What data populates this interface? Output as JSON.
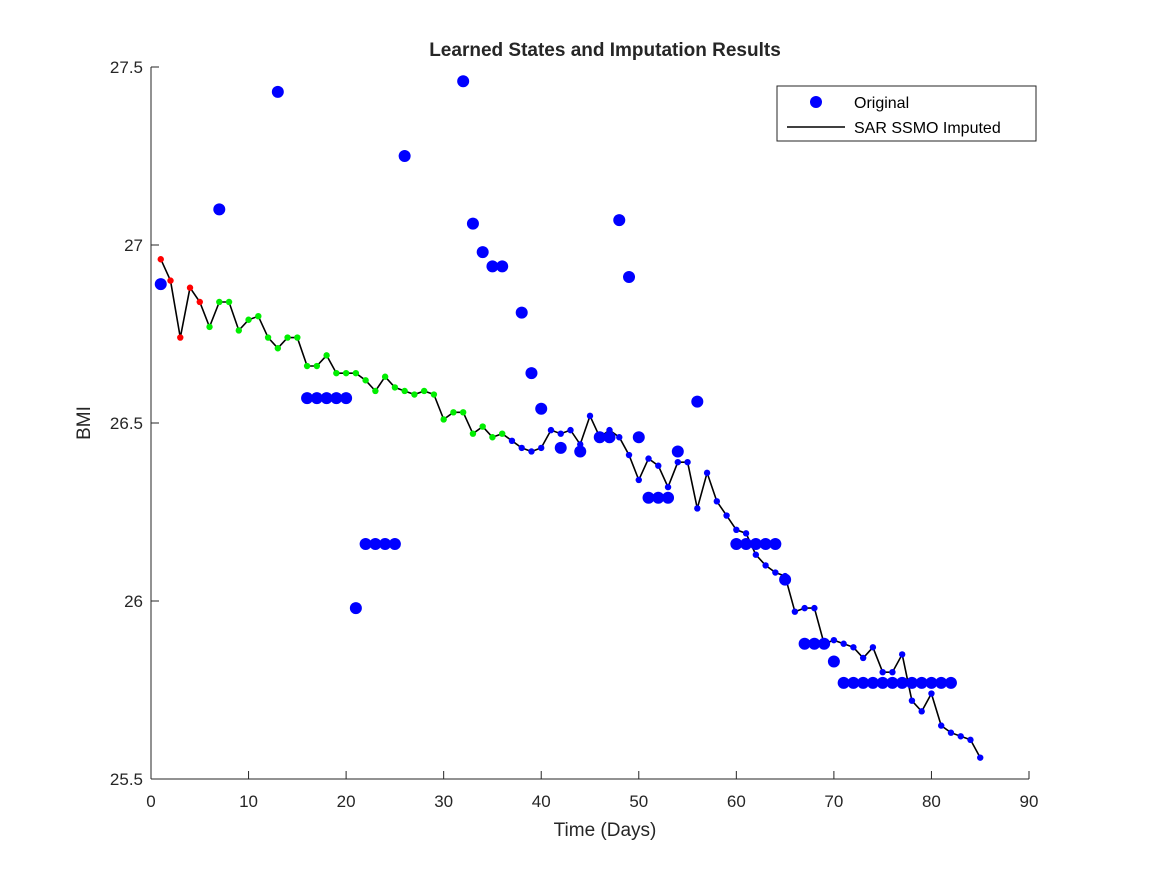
{
  "chart_data": {
    "type": "scatter",
    "title": "Learned States and Imputation Results",
    "xlabel": "Time (Days)",
    "ylabel": "BMI",
    "xlim": [
      0,
      90
    ],
    "ylim": [
      25.5,
      27.5
    ],
    "xticks": [
      "0",
      "10",
      "20",
      "30",
      "40",
      "50",
      "60",
      "70",
      "80",
      "90"
    ],
    "yticks": [
      "25.5",
      "26",
      "26.5",
      "27",
      "27.5"
    ],
    "grid": false,
    "legend_position": "top-right",
    "legend": [
      "Original",
      "SAR SSMO Imputed"
    ],
    "colors": {
      "original": "#0000ff",
      "imputed_line": "#000000",
      "state_1": "#ff0000",
      "state_2": "#00ee00",
      "state_3": "#0000ff"
    },
    "series": [
      {
        "name": "Original",
        "marker": "large-dot",
        "x": [
          1,
          7,
          13,
          16,
          17,
          18,
          19,
          20,
          21,
          22,
          23,
          24,
          25,
          26,
          32,
          33,
          34,
          35,
          36,
          38,
          39,
          40,
          42,
          44,
          46,
          47,
          48,
          49,
          50,
          51,
          52,
          53,
          54,
          56,
          60,
          61,
          62,
          63,
          64,
          65,
          67,
          68,
          69,
          70,
          71,
          72,
          73,
          74,
          75,
          76,
          77,
          78,
          79,
          80,
          81,
          82
        ],
        "y": [
          26.89,
          27.1,
          27.43,
          26.57,
          26.57,
          26.57,
          26.57,
          26.57,
          25.98,
          26.16,
          26.16,
          26.16,
          26.16,
          27.25,
          27.46,
          27.06,
          26.98,
          26.94,
          26.94,
          26.81,
          26.64,
          26.54,
          26.43,
          26.42,
          26.46,
          26.46,
          27.07,
          26.91,
          26.46,
          26.29,
          26.29,
          26.29,
          26.42,
          26.56,
          26.16,
          26.16,
          26.16,
          26.16,
          26.16,
          26.06,
          25.88,
          25.88,
          25.88,
          25.83,
          25.77,
          25.77,
          25.77,
          25.77,
          25.77,
          25.77,
          25.77,
          25.77,
          25.77,
          25.77,
          25.77,
          25.77
        ]
      },
      {
        "name": "SAR SSMO Imputed",
        "marker": "small-dot-line",
        "x": [
          1,
          2,
          3,
          4,
          5,
          6,
          7,
          8,
          9,
          10,
          11,
          12,
          13,
          14,
          15,
          16,
          17,
          18,
          19,
          20,
          21,
          22,
          23,
          24,
          25,
          26,
          27,
          28,
          29,
          30,
          31,
          32,
          33,
          34,
          35,
          36,
          37,
          38,
          39,
          40,
          41,
          42,
          43,
          44,
          45,
          46,
          47,
          48,
          49,
          50,
          51,
          52,
          53,
          54,
          55,
          56,
          57,
          58,
          59,
          60,
          61,
          62,
          63,
          64,
          65,
          66,
          67,
          68,
          69,
          70,
          71,
          72,
          73,
          74,
          75,
          76,
          77,
          78,
          79,
          80,
          81,
          82,
          83,
          84,
          85
        ],
        "y": [
          26.96,
          26.9,
          26.74,
          26.88,
          26.84,
          26.77,
          26.84,
          26.84,
          26.76,
          26.79,
          26.8,
          26.74,
          26.71,
          26.74,
          26.74,
          26.66,
          26.66,
          26.69,
          26.64,
          26.64,
          26.64,
          26.62,
          26.59,
          26.63,
          26.6,
          26.59,
          26.58,
          26.59,
          26.58,
          26.51,
          26.53,
          26.53,
          26.47,
          26.49,
          26.46,
          26.47,
          26.45,
          26.43,
          26.42,
          26.43,
          26.48,
          26.47,
          26.48,
          26.44,
          26.52,
          26.46,
          26.48,
          26.46,
          26.41,
          26.34,
          26.4,
          26.38,
          26.32,
          26.39,
          26.39,
          26.26,
          26.36,
          26.28,
          26.24,
          26.2,
          26.19,
          26.13,
          26.1,
          26.08,
          26.07,
          25.97,
          25.98,
          25.98,
          25.88,
          25.89,
          25.88,
          25.87,
          25.84,
          25.87,
          25.8,
          25.8,
          25.85,
          25.72,
          25.69,
          25.74,
          25.65,
          25.63,
          25.62,
          25.61,
          25.56
        ],
        "state": [
          1,
          1,
          1,
          1,
          1,
          2,
          2,
          2,
          2,
          2,
          2,
          2,
          2,
          2,
          2,
          2,
          2,
          2,
          2,
          2,
          2,
          2,
          2,
          2,
          2,
          2,
          2,
          2,
          2,
          2,
          2,
          2,
          2,
          2,
          2,
          2,
          3,
          3,
          3,
          3,
          3,
          3,
          3,
          3,
          3,
          3,
          3,
          3,
          3,
          3,
          3,
          3,
          3,
          3,
          3,
          3,
          3,
          3,
          3,
          3,
          3,
          3,
          3,
          3,
          3,
          3,
          3,
          3,
          3,
          3,
          3,
          3,
          3,
          3,
          3,
          3,
          3,
          3,
          3,
          3,
          3,
          3,
          3,
          3,
          3
        ]
      }
    ]
  }
}
